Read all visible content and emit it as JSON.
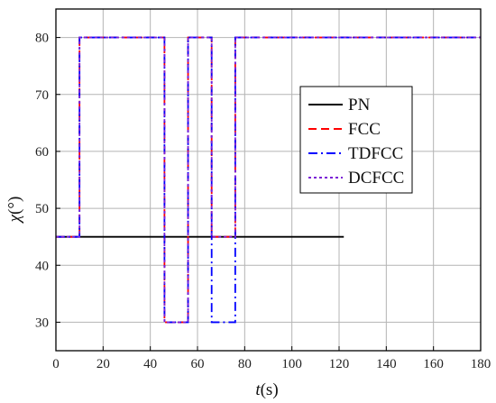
{
  "chart_data": {
    "type": "line",
    "xlabel": {
      "italic": "t",
      "rest": "(s)"
    },
    "ylabel": {
      "italic": "χ",
      "rest": "(°)"
    },
    "xlim": [
      0,
      180
    ],
    "ylim": [
      25,
      85
    ],
    "xticks": [
      0,
      20,
      40,
      60,
      80,
      100,
      120,
      140,
      160,
      180
    ],
    "yticks": [
      30,
      40,
      50,
      60,
      70,
      80
    ],
    "grid": true,
    "legend_position": "center-right",
    "series": [
      {
        "name": "PN",
        "color": "#000000",
        "dash": "solid",
        "x": [
          0,
          122
        ],
        "y": [
          45,
          45
        ]
      },
      {
        "name": "FCC",
        "color": "#ff0000",
        "dash": "dash",
        "x": [
          0,
          10,
          10,
          46,
          46,
          56,
          56,
          66,
          66,
          76,
          76,
          180
        ],
        "y": [
          45,
          45,
          80,
          80,
          30,
          30,
          80,
          80,
          45,
          45,
          80,
          80
        ]
      },
      {
        "name": "TDFCC",
        "color": "#0000ff",
        "dash": "dashdot",
        "x": [
          0,
          10,
          10,
          46,
          46,
          56,
          56,
          66,
          66,
          76,
          76,
          180
        ],
        "y": [
          45,
          45,
          80,
          80,
          30,
          30,
          80,
          80,
          30,
          30,
          80,
          80
        ]
      },
      {
        "name": "DCFCC",
        "color": "#7a1fd6",
        "dash": "dot",
        "x": [
          0,
          10,
          10,
          46,
          46,
          56,
          56,
          66,
          66,
          76,
          76,
          180
        ],
        "y": [
          45,
          45,
          80,
          80,
          30,
          30,
          80,
          80,
          45,
          45,
          80,
          80
        ]
      }
    ]
  }
}
